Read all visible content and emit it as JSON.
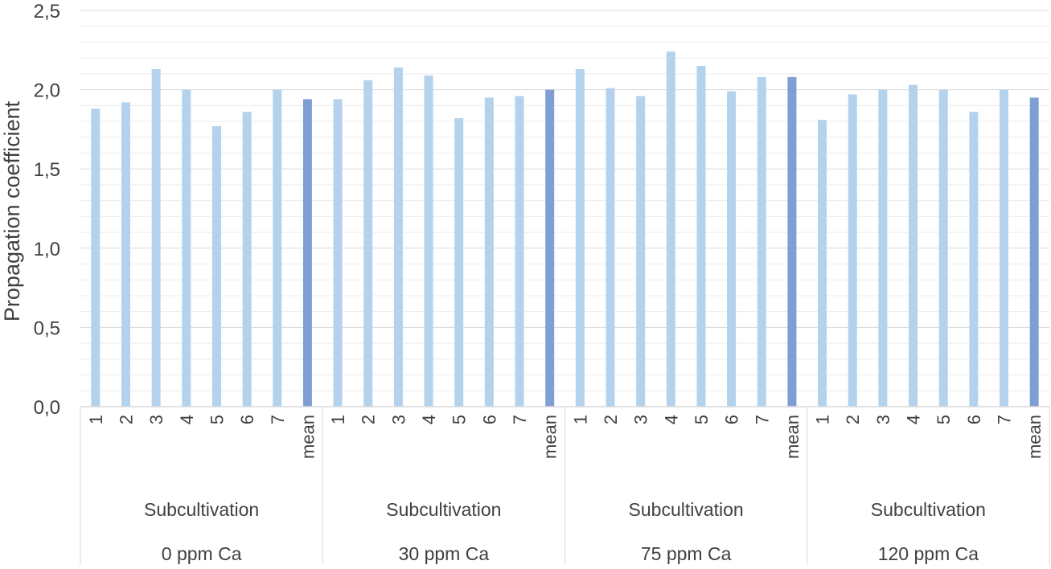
{
  "chart_data": {
    "type": "bar",
    "ylabel": "Propagation coefficient",
    "ylim": [
      0,
      2.5
    ],
    "yticks": [
      "0,0",
      "0,5",
      "1,0",
      "1,5",
      "2,0",
      "2,5"
    ],
    "grid": true,
    "groups": [
      {
        "label_line1": "Subcultivation",
        "label_line2": "0 ppm Ca",
        "categories": [
          "1",
          "2",
          "3",
          "4",
          "5",
          "6",
          "7",
          "mean"
        ],
        "values": [
          1.88,
          1.92,
          2.13,
          2.0,
          1.77,
          1.86,
          2.0,
          1.94
        ]
      },
      {
        "label_line1": "Subcultivation",
        "label_line2": "30 ppm Ca",
        "categories": [
          "1",
          "2",
          "3",
          "4",
          "5",
          "6",
          "7",
          "mean"
        ],
        "values": [
          1.94,
          2.06,
          2.14,
          2.09,
          1.82,
          1.95,
          1.96,
          2.0
        ]
      },
      {
        "label_line1": "Subcultivation",
        "label_line2": "75 ppm Ca",
        "categories": [
          "1",
          "2",
          "3",
          "4",
          "5",
          "6",
          "7",
          "mean"
        ],
        "values": [
          2.13,
          2.01,
          1.96,
          2.24,
          2.15,
          1.99,
          2.08,
          2.08
        ]
      },
      {
        "label_line1": "Subcultivation",
        "label_line2": "120 ppm Ca",
        "categories": [
          "1",
          "2",
          "3",
          "4",
          "5",
          "6",
          "7",
          "mean"
        ],
        "values": [
          1.81,
          1.97,
          2.0,
          2.03,
          2.0,
          1.86,
          2.0,
          1.95
        ]
      }
    ],
    "colors": {
      "bar": "#b4d2ec",
      "mean_bar": "#7f9fd4",
      "grid": "#d9d9d9",
      "axis": "#d9d9d9"
    }
  }
}
